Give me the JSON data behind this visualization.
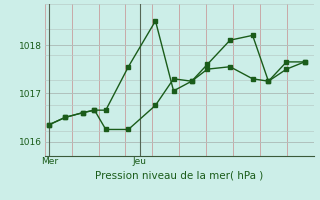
{
  "title": "Pression niveau de la mer( hPa )",
  "background_color": "#cceee8",
  "line_color": "#1a5c1a",
  "ylim": [
    1015.7,
    1018.85
  ],
  "yticks": [
    1016,
    1017,
    1018
  ],
  "xtick_labels": [
    "Mer",
    "Jeu"
  ],
  "xtick_positions": [
    0,
    4
  ],
  "num_cols": 12,
  "line1_x": [
    0,
    0.7,
    1.5,
    2.0,
    2.5,
    3.5,
    4.7,
    5.5,
    6.3,
    7.0,
    8.0,
    9.0,
    9.7,
    10.5,
    11.3
  ],
  "line1_y": [
    1016.35,
    1016.5,
    1016.6,
    1016.65,
    1016.65,
    1017.55,
    1018.5,
    1017.05,
    1017.25,
    1017.5,
    1017.55,
    1017.3,
    1017.25,
    1017.5,
    1017.65
  ],
  "line2_x": [
    0,
    0.7,
    1.5,
    2.0,
    2.5,
    3.5,
    4.7,
    5.5,
    6.3,
    7.0,
    8.0,
    9.0,
    9.7,
    10.5,
    11.3
  ],
  "line2_y": [
    1016.35,
    1016.5,
    1016.6,
    1016.65,
    1016.25,
    1016.25,
    1016.75,
    1017.3,
    1017.25,
    1017.6,
    1018.1,
    1018.2,
    1017.25,
    1017.65,
    1017.65
  ],
  "xlim": [
    -0.2,
    11.7
  ],
  "figsize": [
    3.2,
    2.0
  ],
  "dpi": 100
}
